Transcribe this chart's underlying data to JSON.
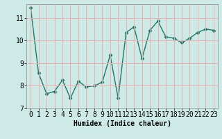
{
  "x": [
    0,
    1,
    2,
    3,
    4,
    5,
    6,
    7,
    8,
    9,
    10,
    11,
    12,
    13,
    14,
    15,
    16,
    17,
    18,
    19,
    20,
    21,
    22,
    23
  ],
  "y": [
    11.45,
    8.55,
    7.65,
    7.75,
    8.25,
    7.45,
    8.2,
    7.95,
    8.0,
    8.15,
    9.35,
    7.45,
    10.35,
    10.6,
    9.2,
    10.45,
    10.85,
    10.15,
    10.1,
    9.9,
    10.1,
    10.35,
    10.5,
    10.45
  ],
  "line_color": "#1a7a6a",
  "marker": "D",
  "markersize": 2.5,
  "linewidth": 1.0,
  "xlabel": "Humidex (Indice chaleur)",
  "bg_color": "#ceeae6",
  "grid_color": "#f0b0b0",
  "xlim": [
    -0.5,
    23.5
  ],
  "ylim": [
    7.0,
    11.6
  ],
  "yticks": [
    7,
    8,
    9,
    10,
    11
  ],
  "xticks": [
    0,
    1,
    2,
    3,
    4,
    5,
    6,
    7,
    8,
    9,
    10,
    11,
    12,
    13,
    14,
    15,
    16,
    17,
    18,
    19,
    20,
    21,
    22,
    23
  ],
  "xlabel_fontsize": 7,
  "tick_fontsize": 7,
  "spine_color": "#888888"
}
